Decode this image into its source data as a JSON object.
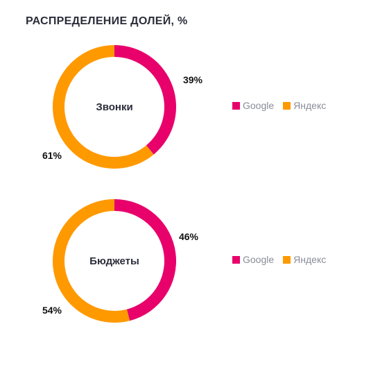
{
  "title": "РАСПРЕДЕЛЕНИЕ ДОЛЕЙ, %",
  "colors": {
    "google": "#e8006b",
    "yandex": "#ff9900"
  },
  "chart_data": [
    {
      "type": "pie",
      "center_label": "Звонки",
      "series": [
        {
          "name": "Google",
          "value": 39
        },
        {
          "name": "Яндекс",
          "value": 61
        }
      ],
      "value_labels": [
        "39%",
        "61%"
      ],
      "legend": [
        "Google",
        "Яндекс"
      ],
      "legend_position": "right"
    },
    {
      "type": "pie",
      "center_label": "Бюджеты",
      "series": [
        {
          "name": "Google",
          "value": 46
        },
        {
          "name": "Яндекс",
          "value": 54
        }
      ],
      "value_labels": [
        "46%",
        "54%"
      ],
      "legend": [
        "Google",
        "Яндекс"
      ],
      "legend_position": "right"
    }
  ]
}
